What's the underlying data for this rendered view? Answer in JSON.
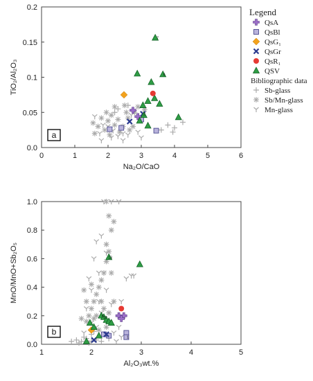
{
  "colors": {
    "QsA": "#9c6fc9",
    "QsBl": "#b9b3dc",
    "QsBl_edge": "#4b4a8e",
    "QsG1": "#f3a21c",
    "QsGr": "#2b3a8f",
    "QsR1": "#e63a33",
    "QSV": "#2f9d45",
    "glass": "#aaaaaa"
  },
  "legend": {
    "title": "Legend",
    "items": [
      {
        "key": "QsA",
        "label": "QsA",
        "marker": "plus-icon"
      },
      {
        "key": "QsBl",
        "label": "QsBl",
        "marker": "square-icon"
      },
      {
        "key": "QsG1",
        "label": "QsG₁",
        "marker": "diamond-icon"
      },
      {
        "key": "QsGr",
        "label": "QsGr",
        "marker": "cross-icon"
      },
      {
        "key": "QsR1",
        "label": "QsR₁",
        "marker": "circle-icon"
      },
      {
        "key": "QSV",
        "label": "QSV",
        "marker": "triangle-icon"
      }
    ],
    "biblio_title": "Bibliographic data",
    "biblio": [
      {
        "key": "Sb",
        "label": "Sb-glass",
        "marker": "thin-plus-icon"
      },
      {
        "key": "SbMn",
        "label": "Sb/Mn-glass",
        "marker": "asterisk-icon"
      },
      {
        "key": "Mn",
        "label": "Mn-glass",
        "marker": "y-icon"
      }
    ]
  },
  "chart_data": [
    {
      "panel": "a",
      "type": "scatter",
      "xlabel": "Na₂O/CaO",
      "ylabel": "TiO₂/Al₂O₃",
      "xlim": [
        0,
        6
      ],
      "ylim": [
        0,
        0.2
      ],
      "xticks": [
        "0",
        "1",
        "2",
        "3",
        "4",
        "5",
        "6"
      ],
      "yticks": [
        "0.0",
        "0.05",
        "0.1",
        "0.15",
        "0.2"
      ],
      "series": [
        {
          "key": "QsA",
          "points": [
            [
              2.75,
              0.053
            ],
            [
              2.9,
              0.044
            ]
          ]
        },
        {
          "key": "QsBl",
          "points": [
            [
              2.05,
              0.026
            ],
            [
              2.4,
              0.028
            ],
            [
              3.45,
              0.024
            ],
            [
              3.0,
              0.04
            ]
          ]
        },
        {
          "key": "QsG1",
          "points": [
            [
              2.48,
              0.075
            ]
          ]
        },
        {
          "key": "QsGr",
          "points": [
            [
              2.65,
              0.037
            ],
            [
              3.05,
              0.048
            ]
          ]
        },
        {
          "key": "QsR1",
          "points": [
            [
              3.35,
              0.077
            ]
          ]
        },
        {
          "key": "QSV",
          "points": [
            [
              3.42,
              0.156
            ],
            [
              2.88,
              0.105
            ],
            [
              3.65,
              0.104
            ],
            [
              3.3,
              0.093
            ],
            [
              3.4,
              0.07
            ],
            [
              3.2,
              0.066
            ],
            [
              3.55,
              0.062
            ],
            [
              3.05,
              0.06
            ],
            [
              3.08,
              0.046
            ],
            [
              3.2,
              0.031
            ],
            [
              4.12,
              0.043
            ],
            [
              2.95,
              0.038
            ]
          ]
        },
        {
          "key": "Sb",
          "points": [
            [
              3.8,
              0.032
            ],
            [
              4.0,
              0.028
            ],
            [
              4.25,
              0.036
            ],
            [
              3.95,
              0.022
            ],
            [
              3.6,
              0.025
            ],
            [
              2.6,
              0.06
            ],
            [
              2.3,
              0.055
            ],
            [
              2.2,
              0.05
            ]
          ]
        },
        {
          "key": "SbMn",
          "points": [
            [
              1.55,
              0.035
            ],
            [
              1.7,
              0.03
            ],
            [
              1.8,
              0.042
            ],
            [
              1.9,
              0.025
            ],
            [
              2.0,
              0.038
            ],
            [
              2.1,
              0.046
            ],
            [
              2.2,
              0.032
            ],
            [
              2.3,
              0.04
            ],
            [
              2.45,
              0.03
            ],
            [
              2.55,
              0.05
            ],
            [
              2.2,
              0.058
            ],
            [
              2.6,
              0.042
            ],
            [
              2.8,
              0.05
            ],
            [
              2.75,
              0.03
            ],
            [
              3.1,
              0.054
            ],
            [
              2.35,
              0.022
            ],
            [
              1.95,
              0.05
            ],
            [
              2.5,
              0.06
            ],
            [
              2.65,
              0.025
            ],
            [
              2.9,
              0.058
            ],
            [
              1.6,
              0.02
            ],
            [
              2.05,
              0.018
            ]
          ]
        },
        {
          "key": "Mn",
          "points": [
            [
              1.6,
              0.044
            ],
            [
              1.75,
              0.02
            ],
            [
              1.85,
              0.032
            ],
            [
              2.0,
              0.03
            ],
            [
              2.15,
              0.024
            ],
            [
              2.3,
              0.016
            ],
            [
              2.45,
              0.02
            ],
            [
              2.6,
              0.018
            ],
            [
              2.7,
              0.046
            ],
            [
              2.9,
              0.022
            ],
            [
              3.0,
              0.014
            ],
            [
              2.1,
              0.014
            ],
            [
              1.8,
              0.01
            ],
            [
              2.45,
              0.01
            ]
          ]
        }
      ],
      "sample_labels": [
        {
          "text": "2",
          "x": 3.05,
          "y": 0.048
        },
        {
          "text": "7",
          "x": 3.45,
          "y": 0.156
        },
        {
          "text": "6",
          "x": 3.65,
          "y": 0.104
        }
      ]
    },
    {
      "panel": "b",
      "type": "scatter",
      "xlabel": "Al₂O₃wt.%",
      "ylabel": "MnO/MnO+Sb₂O₅",
      "xlim": [
        1,
        5
      ],
      "ylim": [
        0,
        1
      ],
      "xticks": [
        "1",
        "2",
        "3",
        "4",
        "5"
      ],
      "yticks": [
        "0.0",
        "0.2",
        "0.4",
        "0.6",
        "0.8",
        "1.0"
      ],
      "series": [
        {
          "key": "QsA",
          "points": [
            [
              2.55,
              0.2
            ],
            [
              2.65,
              0.2
            ],
            [
              2.6,
              0.18
            ]
          ]
        },
        {
          "key": "QsBl",
          "points": [
            [
              2.7,
              0.08
            ],
            [
              2.7,
              0.05
            ],
            [
              2.35,
              0.06
            ],
            [
              2.25,
              0.07
            ]
          ]
        },
        {
          "key": "QsG1",
          "points": [
            [
              2.0,
              0.1
            ]
          ]
        },
        {
          "key": "QsGr",
          "points": [
            [
              2.05,
              0.03
            ],
            [
              2.3,
              0.07
            ]
          ]
        },
        {
          "key": "QsR1",
          "points": [
            [
              2.6,
              0.25
            ]
          ]
        },
        {
          "key": "QSV",
          "points": [
            [
              2.35,
              0.61
            ],
            [
              2.97,
              0.56
            ],
            [
              2.2,
              0.2
            ],
            [
              2.25,
              0.19
            ],
            [
              2.3,
              0.17
            ],
            [
              2.35,
              0.16
            ],
            [
              2.4,
              0.15
            ],
            [
              1.97,
              0.15
            ],
            [
              1.9,
              0.02
            ],
            [
              2.05,
              0.12
            ],
            [
              2.15,
              0.06
            ]
          ]
        },
        {
          "key": "Sb",
          "points": [
            [
              1.6,
              0.02
            ],
            [
              1.7,
              0.03
            ],
            [
              1.8,
              0.02
            ],
            [
              1.9,
              0.04
            ],
            [
              2.0,
              0.02
            ],
            [
              2.1,
              0.03
            ],
            [
              2.2,
              0.02
            ],
            [
              1.75,
              0.01
            ],
            [
              1.85,
              0.05
            ],
            [
              2.0,
              0.07
            ],
            [
              2.05,
              0.09
            ],
            [
              1.95,
              0.01
            ]
          ]
        },
        {
          "key": "SbMn",
          "points": [
            [
              2.3,
              1.0
            ],
            [
              2.35,
              0.9
            ],
            [
              2.45,
              0.86
            ],
            [
              2.4,
              0.8
            ],
            [
              2.3,
              0.7
            ],
            [
              2.35,
              0.65
            ],
            [
              2.3,
              0.58
            ],
            [
              2.25,
              0.5
            ],
            [
              2.2,
              0.45
            ],
            [
              2.15,
              0.4
            ],
            [
              2.1,
              0.35
            ],
            [
              2.05,
              0.3
            ],
            [
              2.0,
              0.25
            ],
            [
              1.95,
              0.2
            ],
            [
              1.9,
              0.16
            ],
            [
              1.85,
              0.38
            ],
            [
              2.0,
              0.42
            ],
            [
              2.2,
              0.3
            ],
            [
              2.25,
              0.25
            ],
            [
              2.1,
              0.2
            ],
            [
              2.35,
              0.22
            ],
            [
              2.3,
              0.12
            ],
            [
              2.05,
              0.18
            ],
            [
              2.15,
              0.1
            ],
            [
              2.4,
              0.5
            ],
            [
              2.45,
              0.3
            ],
            [
              1.9,
              0.3
            ],
            [
              1.8,
              0.18
            ]
          ]
        },
        {
          "key": "Mn",
          "points": [
            [
              2.25,
              1.0
            ],
            [
              2.4,
              1.0
            ],
            [
              2.55,
              1.0
            ],
            [
              2.2,
              0.76
            ],
            [
              2.1,
              0.72
            ],
            [
              2.05,
              0.6
            ],
            [
              2.3,
              0.64
            ],
            [
              2.25,
              0.5
            ],
            [
              2.15,
              0.5
            ],
            [
              1.95,
              0.46
            ],
            [
              2.0,
              0.38
            ],
            [
              2.7,
              0.46
            ],
            [
              2.85,
              0.48
            ],
            [
              2.15,
              0.3
            ],
            [
              2.2,
              0.22
            ],
            [
              1.9,
              0.25
            ],
            [
              2.0,
              0.15
            ],
            [
              2.1,
              0.12
            ],
            [
              2.4,
              0.28
            ],
            [
              2.55,
              0.12
            ],
            [
              2.45,
              0.08
            ],
            [
              2.35,
              0.04
            ],
            [
              2.5,
              0.02
            ],
            [
              2.6,
              0.05
            ],
            [
              1.85,
              0.08
            ],
            [
              2.8,
              0.48
            ],
            [
              2.3,
              0.38
            ],
            [
              2.6,
              0.3
            ]
          ]
        }
      ],
      "sample_labels": [
        {
          "text": "5",
          "x": 2.2,
          "y": 0.2
        },
        {
          "text": "10",
          "x": 2.25,
          "y": 0.19
        },
        {
          "text": "13",
          "x": 2.35,
          "y": 0.61
        },
        {
          "text": "1",
          "x": 2.7,
          "y": 0.05
        }
      ]
    }
  ]
}
